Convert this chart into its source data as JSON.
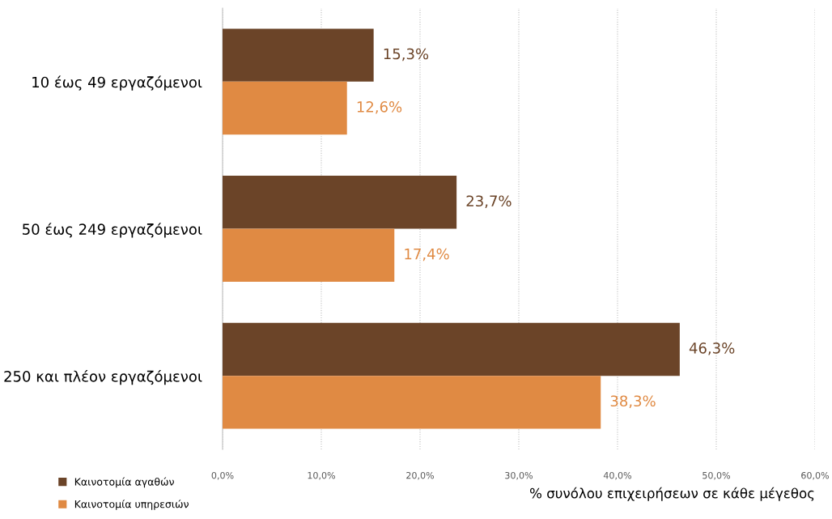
{
  "chart_data": {
    "type": "bar",
    "orientation": "horizontal",
    "categories": [
      "10 έως 49 εργαζόμενοι",
      "50 έως 249 εργαζόμενοι",
      "250 και πλέον εργαζόμενοι"
    ],
    "series": [
      {
        "name": "Καινοτομία αγαθών",
        "color": "#6b4428",
        "values": [
          15.3,
          23.7,
          46.3
        ],
        "value_labels": [
          "15,3%",
          "23,7%",
          "46,3%"
        ]
      },
      {
        "name": "Καινοτομία υπηρεσιών",
        "color": "#e08a43",
        "values": [
          12.6,
          17.4,
          38.3
        ],
        "value_labels": [
          "12,6%",
          "17,4%",
          "38,3%"
        ]
      }
    ],
    "xlim": [
      0,
      60
    ],
    "xticks": [
      {
        "value": 0,
        "label": "0,0%"
      },
      {
        "value": 10,
        "label": "10,0%"
      },
      {
        "value": 20,
        "label": "20,0%"
      },
      {
        "value": 30,
        "label": "30,0%"
      },
      {
        "value": 40,
        "label": "40,0%"
      },
      {
        "value": 50,
        "label": "50,0%"
      },
      {
        "value": 60,
        "label": "60,0%"
      }
    ],
    "xlabel": "% συνόλου επιχειρήσεων σε κάθε μέγεθος",
    "grid": "x",
    "legend": "bottom left"
  }
}
